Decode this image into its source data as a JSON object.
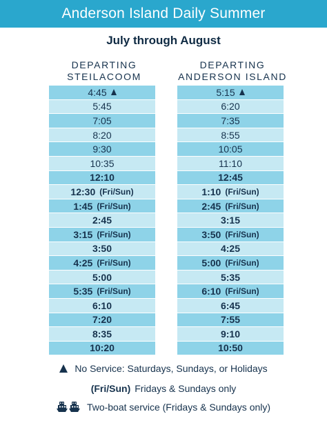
{
  "header": {
    "title": "Anderson Island Daily Summer"
  },
  "subtitle": "July through August",
  "columns": {
    "left": {
      "heading_line1": "DEPARTING",
      "heading_line2": "STEILACOOM",
      "rows": [
        {
          "time": "4:45",
          "note": "",
          "marker": "triangle"
        },
        {
          "time": "5:45",
          "note": "",
          "marker": ""
        },
        {
          "time": "7:05",
          "note": "",
          "marker": ""
        },
        {
          "time": "8:20",
          "note": "",
          "marker": ""
        },
        {
          "time": "9:30",
          "note": "",
          "marker": ""
        },
        {
          "time": "10:35",
          "note": "",
          "marker": ""
        },
        {
          "time": "12:10",
          "note": "",
          "marker": ""
        },
        {
          "time": "12:30",
          "note": "(Fri/Sun)",
          "marker": ""
        },
        {
          "time": "1:45",
          "note": "(Fri/Sun)",
          "marker": ""
        },
        {
          "time": "2:45",
          "note": "",
          "marker": ""
        },
        {
          "time": "3:15",
          "note": "(Fri/Sun)",
          "marker": ""
        },
        {
          "time": "3:50",
          "note": "",
          "marker": ""
        },
        {
          "time": "4:25",
          "note": "(Fri/Sun)",
          "marker": ""
        },
        {
          "time": "5:00",
          "note": "",
          "marker": ""
        },
        {
          "time": "5:35",
          "note": "(Fri/Sun)",
          "marker": ""
        },
        {
          "time": "6:10",
          "note": "",
          "marker": ""
        },
        {
          "time": "7:20",
          "note": "",
          "marker": ""
        },
        {
          "time": "8:35",
          "note": "",
          "marker": ""
        },
        {
          "time": "10:20",
          "note": "",
          "marker": ""
        }
      ]
    },
    "right": {
      "heading_line1": "DEPARTING",
      "heading_line2": "ANDERSON ISLAND",
      "rows": [
        {
          "time": "5:15",
          "note": "",
          "marker": "triangle"
        },
        {
          "time": "6:20",
          "note": "",
          "marker": ""
        },
        {
          "time": "7:35",
          "note": "",
          "marker": ""
        },
        {
          "time": "8:55",
          "note": "",
          "marker": ""
        },
        {
          "time": "10:05",
          "note": "",
          "marker": ""
        },
        {
          "time": "11:10",
          "note": "",
          "marker": ""
        },
        {
          "time": "12:45",
          "note": "",
          "marker": ""
        },
        {
          "time": "1:10",
          "note": "(Fri/Sun)",
          "marker": ""
        },
        {
          "time": "2:45",
          "note": "(Fri/Sun)",
          "marker": ""
        },
        {
          "time": "3:15",
          "note": "",
          "marker": ""
        },
        {
          "time": "3:50",
          "note": "(Fri/Sun)",
          "marker": ""
        },
        {
          "time": "4:25",
          "note": "",
          "marker": ""
        },
        {
          "time": "5:00",
          "note": "(Fri/Sun)",
          "marker": ""
        },
        {
          "time": "5:35",
          "note": "",
          "marker": ""
        },
        {
          "time": "6:10",
          "note": "(Fri/Sun)",
          "marker": ""
        },
        {
          "time": "6:45",
          "note": "",
          "marker": ""
        },
        {
          "time": "7:55",
          "note": "",
          "marker": ""
        },
        {
          "time": "9:10",
          "note": "",
          "marker": ""
        },
        {
          "time": "10:50",
          "note": "",
          "marker": ""
        }
      ]
    }
  },
  "legend": {
    "no_service": "No Service: Saturdays, Sundays, or Holidays",
    "fri_sun_code": "(Fri/Sun)",
    "fri_sun_text": "Fridays & Sundays only",
    "two_boat": "Two-boat service (Fridays & Sundays only)",
    "icons": {
      "no_service": "triangle-icon",
      "two_boat": "two-ferries-icon"
    }
  },
  "colors": {
    "header_bg": "#2aa7cd",
    "row_light": "#c6e9f3",
    "row_dark": "#8ed3e8",
    "text": "#16324d"
  }
}
